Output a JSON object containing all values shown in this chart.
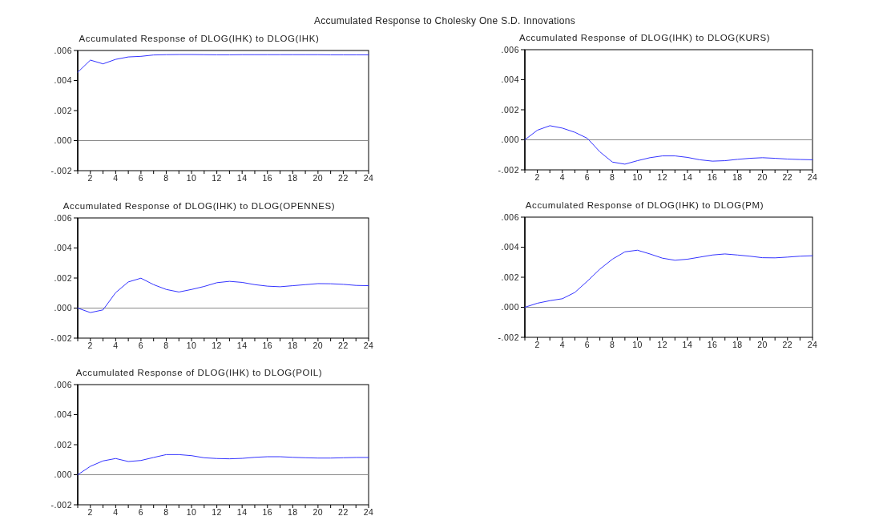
{
  "chart_data": [
    {
      "type": "line",
      "title": "Accumulated Response of DLOG(IHK) to DLOG(IHK)",
      "annotations": [
        "Accumulated Response to Cholesky One S.D. Innovations"
      ],
      "x": [
        1,
        2,
        3,
        4,
        5,
        6,
        7,
        8,
        9,
        10,
        11,
        12,
        13,
        14,
        15,
        16,
        17,
        18,
        19,
        20,
        21,
        22,
        23,
        24
      ],
      "series": [
        {
          "color": "#3333ff",
          "values": [
            0.00455,
            0.00536,
            0.00511,
            0.00541,
            0.00557,
            0.00561,
            0.0057,
            0.00572,
            0.00573,
            0.00573,
            0.00572,
            0.00571,
            0.00571,
            0.00572,
            0.00572,
            0.00572,
            0.00572,
            0.00572,
            0.00572,
            0.00572,
            0.00571,
            0.00571,
            0.00571,
            0.00571
          ]
        }
      ],
      "xlim": [
        1,
        24
      ],
      "xticks": [
        {
          "value": 1,
          "label": null
        },
        2,
        {
          "value": 3,
          "label": null
        },
        4,
        {
          "value": 5,
          "label": null
        },
        6,
        {
          "value": 7,
          "label": null
        },
        8,
        {
          "value": 9,
          "label": null
        },
        10,
        {
          "value": 11,
          "label": null
        },
        12,
        {
          "value": 13,
          "label": null
        },
        14,
        {
          "value": 15,
          "label": null
        },
        16,
        {
          "value": 17,
          "label": null
        },
        18,
        {
          "value": 19,
          "label": null
        },
        20,
        {
          "value": 21,
          "label": null
        },
        22,
        {
          "value": 23,
          "label": null
        },
        24
      ],
      "ylim": [
        -0.002,
        0.006
      ],
      "yticks": [
        {
          "value": -0.002,
          "label": "-.002"
        },
        {
          "value": 0,
          "label": ".000"
        },
        {
          "value": 0.002,
          "label": ".002"
        },
        {
          "value": 0.004,
          "label": ".004"
        },
        {
          "value": 0.006,
          "label": ".006"
        }
      ],
      "ref_lines": [
        {
          "axis": "y",
          "value": 0,
          "color": "#888888"
        }
      ]
    },
    {
      "type": "line",
      "title": "Accumulated Response of DLOG(IHK) to DLOG(KURS)",
      "x": [
        1,
        2,
        3,
        4,
        5,
        6,
        7,
        8,
        9,
        10,
        11,
        12,
        13,
        14,
        15,
        16,
        17,
        18,
        19,
        20,
        21,
        22,
        23,
        24
      ],
      "series": [
        {
          "color": "#3333ff",
          "values": [
            0,
            0.00064,
            0.00094,
            0.00078,
            0.0005,
            0.0001,
            -0.0008,
            -0.00148,
            -0.00162,
            -0.00139,
            -0.00119,
            -0.00107,
            -0.00107,
            -0.00117,
            -0.00133,
            -0.00142,
            -0.00139,
            -0.0013,
            -0.00123,
            -0.00119,
            -0.00123,
            -0.00128,
            -0.00131,
            -0.00133
          ]
        }
      ],
      "xlim": [
        1,
        24
      ],
      "xticks": [
        {
          "value": 1,
          "label": null
        },
        2,
        {
          "value": 3,
          "label": null
        },
        4,
        {
          "value": 5,
          "label": null
        },
        6,
        {
          "value": 7,
          "label": null
        },
        8,
        {
          "value": 9,
          "label": null
        },
        10,
        {
          "value": 11,
          "label": null
        },
        12,
        {
          "value": 13,
          "label": null
        },
        14,
        {
          "value": 15,
          "label": null
        },
        16,
        {
          "value": 17,
          "label": null
        },
        18,
        {
          "value": 19,
          "label": null
        },
        20,
        {
          "value": 21,
          "label": null
        },
        22,
        {
          "value": 23,
          "label": null
        },
        24
      ],
      "ylim": [
        -0.002,
        0.006
      ],
      "yticks": [
        {
          "value": -0.002,
          "label": "-.002"
        },
        {
          "value": 0,
          "label": ".000"
        },
        {
          "value": 0.002,
          "label": ".002"
        },
        {
          "value": 0.004,
          "label": ".004"
        },
        {
          "value": 0.006,
          "label": ".006"
        }
      ],
      "ref_lines": [
        {
          "axis": "y",
          "value": 0,
          "color": "#888888"
        }
      ]
    },
    {
      "type": "line",
      "title": "Accumulated Response of DLOG(IHK) to DLOG(OPENNES)",
      "x": [
        1,
        2,
        3,
        4,
        5,
        6,
        7,
        8,
        9,
        10,
        11,
        12,
        13,
        14,
        15,
        16,
        17,
        18,
        19,
        20,
        21,
        22,
        23,
        24
      ],
      "series": [
        {
          "color": "#3333ff",
          "values": [
            0,
            -0.0003,
            -0.00012,
            0.00103,
            0.00174,
            0.00199,
            0.00156,
            0.00124,
            0.00107,
            0.00124,
            0.00144,
            0.00169,
            0.00178,
            0.00171,
            0.00156,
            0.00146,
            0.00142,
            0.00149,
            0.00156,
            0.00163,
            0.00162,
            0.00158,
            0.00151,
            0.00149
          ]
        }
      ],
      "xlim": [
        1,
        24
      ],
      "xticks": [
        {
          "value": 1,
          "label": null
        },
        2,
        {
          "value": 3,
          "label": null
        },
        4,
        {
          "value": 5,
          "label": null
        },
        6,
        {
          "value": 7,
          "label": null
        },
        8,
        {
          "value": 9,
          "label": null
        },
        10,
        {
          "value": 11,
          "label": null
        },
        12,
        {
          "value": 13,
          "label": null
        },
        14,
        {
          "value": 15,
          "label": null
        },
        16,
        {
          "value": 17,
          "label": null
        },
        18,
        {
          "value": 19,
          "label": null
        },
        20,
        {
          "value": 21,
          "label": null
        },
        22,
        {
          "value": 23,
          "label": null
        },
        24
      ],
      "ylim": [
        -0.002,
        0.006
      ],
      "yticks": [
        {
          "value": -0.002,
          "label": "-.002"
        },
        {
          "value": 0,
          "label": ".000"
        },
        {
          "value": 0.002,
          "label": ".002"
        },
        {
          "value": 0.004,
          "label": ".004"
        },
        {
          "value": 0.006,
          "label": ".006"
        }
      ],
      "ref_lines": [
        {
          "axis": "y",
          "value": 0,
          "color": "#888888"
        }
      ]
    },
    {
      "type": "line",
      "title": "Accumulated Response of DLOG(IHK) to DLOG(PM)",
      "x": [
        1,
        2,
        3,
        4,
        5,
        6,
        7,
        8,
        9,
        10,
        11,
        12,
        13,
        14,
        15,
        16,
        17,
        18,
        19,
        20,
        21,
        22,
        23,
        24
      ],
      "series": [
        {
          "color": "#3333ff",
          "values": [
            0,
            0.00027,
            0.00044,
            0.00057,
            0.00099,
            0.00174,
            0.00254,
            0.0032,
            0.00369,
            0.0038,
            0.00355,
            0.00327,
            0.00313,
            0.0032,
            0.00334,
            0.00348,
            0.00355,
            0.00348,
            0.0034,
            0.0033,
            0.00329,
            0.00334,
            0.0034,
            0.00343
          ]
        }
      ],
      "xlim": [
        1,
        24
      ],
      "xticks": [
        {
          "value": 1,
          "label": null
        },
        2,
        {
          "value": 3,
          "label": null
        },
        4,
        {
          "value": 5,
          "label": null
        },
        6,
        {
          "value": 7,
          "label": null
        },
        8,
        {
          "value": 9,
          "label": null
        },
        10,
        {
          "value": 11,
          "label": null
        },
        12,
        {
          "value": 13,
          "label": null
        },
        14,
        {
          "value": 15,
          "label": null
        },
        16,
        {
          "value": 17,
          "label": null
        },
        18,
        {
          "value": 19,
          "label": null
        },
        20,
        {
          "value": 21,
          "label": null
        },
        22,
        {
          "value": 23,
          "label": null
        },
        24
      ],
      "ylim": [
        -0.002,
        0.006
      ],
      "yticks": [
        {
          "value": -0.002,
          "label": "-.002"
        },
        {
          "value": 0,
          "label": ".000"
        },
        {
          "value": 0.002,
          "label": ".002"
        },
        {
          "value": 0.004,
          "label": ".004"
        },
        {
          "value": 0.006,
          "label": ".006"
        }
      ],
      "ref_lines": [
        {
          "axis": "y",
          "value": 0,
          "color": "#888888"
        }
      ]
    },
    {
      "type": "line",
      "title": "Accumulated Response of DLOG(IHK) to DLOG(POIL)",
      "x": [
        1,
        2,
        3,
        4,
        5,
        6,
        7,
        8,
        9,
        10,
        11,
        12,
        13,
        14,
        15,
        16,
        17,
        18,
        19,
        20,
        21,
        22,
        23,
        24
      ],
      "series": [
        {
          "color": "#3333ff",
          "values": [
            0,
            0.00056,
            0.00092,
            0.00108,
            0.00088,
            0.00095,
            0.00115,
            0.00134,
            0.00134,
            0.00127,
            0.00113,
            0.00108,
            0.00106,
            0.00109,
            0.00116,
            0.0012,
            0.0012,
            0.00116,
            0.00113,
            0.00111,
            0.00111,
            0.00113,
            0.00115,
            0.00115
          ]
        }
      ],
      "xlim": [
        1,
        24
      ],
      "xticks": [
        {
          "value": 1,
          "label": null
        },
        2,
        {
          "value": 3,
          "label": null
        },
        4,
        {
          "value": 5,
          "label": null
        },
        6,
        {
          "value": 7,
          "label": null
        },
        8,
        {
          "value": 9,
          "label": null
        },
        10,
        {
          "value": 11,
          "label": null
        },
        12,
        {
          "value": 13,
          "label": null
        },
        14,
        {
          "value": 15,
          "label": null
        },
        16,
        {
          "value": 17,
          "label": null
        },
        18,
        {
          "value": 19,
          "label": null
        },
        20,
        {
          "value": 21,
          "label": null
        },
        22,
        {
          "value": 23,
          "label": null
        },
        24
      ],
      "ylim": [
        -0.002,
        0.006
      ],
      "yticks": [
        {
          "value": -0.002,
          "label": "-.002"
        },
        {
          "value": 0,
          "label": ".000"
        },
        {
          "value": 0.002,
          "label": ".002"
        },
        {
          "value": 0.004,
          "label": ".004"
        },
        {
          "value": 0.006,
          "label": ".006"
        }
      ],
      "ref_lines": [
        {
          "axis": "y",
          "value": 0,
          "color": "#888888"
        }
      ]
    }
  ]
}
